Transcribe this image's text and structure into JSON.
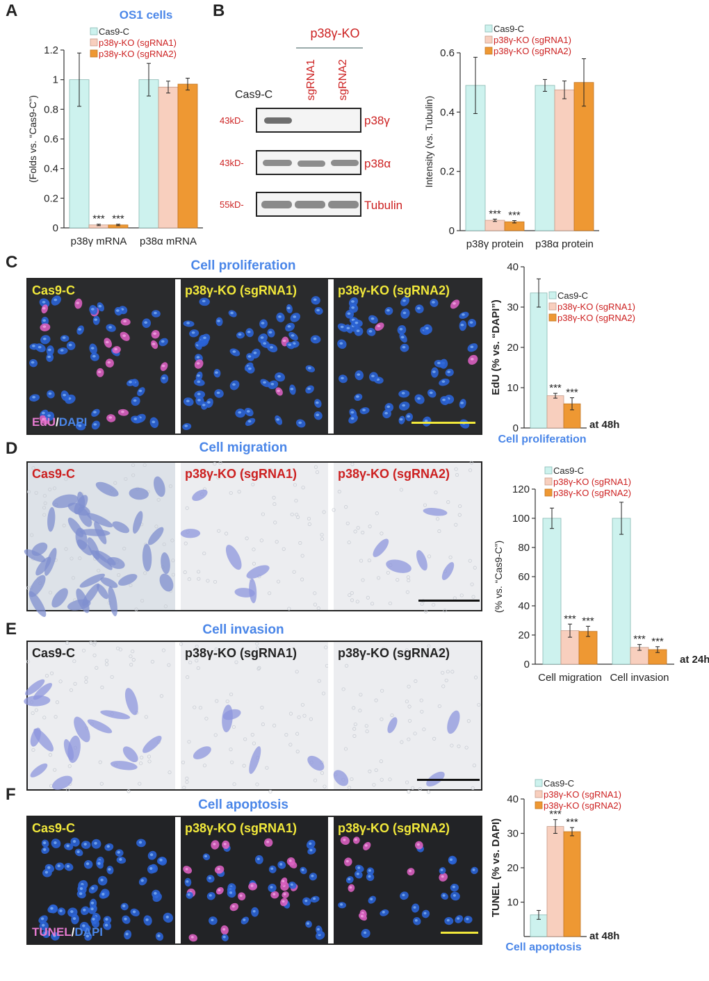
{
  "panels": {
    "A": "A",
    "B": "B",
    "C": "C",
    "D": "D",
    "E": "E",
    "F": "F"
  },
  "colors": {
    "cas9": "#cdf2ee",
    "sg1": "#f8cfbe",
    "sg2": "#ee9833",
    "title_blue": "#4a86e8",
    "label_red": "#cc1f1f",
    "label_yellow": "#f2e93b"
  },
  "legend": [
    "Cas9-C",
    "p38γ-KO (sgRNA1)",
    "p38γ-KO (sgRNA2)"
  ],
  "chart_data": [
    {
      "id": "A",
      "type": "bar",
      "title": "OS1 cells",
      "ylabel": "(Folds vs. “Cas9-C”)",
      "xlabel": "",
      "ylim": [
        0,
        1.2
      ],
      "yticks": [
        0,
        0.2,
        0.4,
        0.6,
        0.8,
        1,
        1.2
      ],
      "categories": [
        "p38γ mRNA",
        "p38α mRNA"
      ],
      "series": [
        {
          "name": "Cas9-C",
          "values": [
            1.0,
            1.0
          ],
          "errors": [
            0.18,
            0.11
          ]
        },
        {
          "name": "p38γ-KO (sgRNA1)",
          "values": [
            0.02,
            0.95
          ],
          "errors": [
            0.005,
            0.04
          ]
        },
        {
          "name": "p38γ-KO (sgRNA2)",
          "values": [
            0.02,
            0.97
          ],
          "errors": [
            0.005,
            0.04
          ]
        }
      ],
      "annotations": [
        [
          "",
          "***",
          "***"
        ],
        [
          "",
          "",
          ""
        ]
      ],
      "side_note": ""
    },
    {
      "id": "B",
      "type": "bar",
      "title": "",
      "ylabel": "Intensity (vs. Tubulin)",
      "xlabel": "",
      "ylim": [
        0,
        0.6
      ],
      "yticks": [
        0,
        0.2,
        0.4,
        0.6
      ],
      "categories": [
        "p38γ protein",
        "p38α protein"
      ],
      "series": [
        {
          "name": "Cas9-C",
          "values": [
            0.49,
            0.49
          ],
          "errors": [
            0.095,
            0.02
          ]
        },
        {
          "name": "p38γ-KO (sgRNA1)",
          "values": [
            0.035,
            0.475
          ],
          "errors": [
            0.004,
            0.03
          ]
        },
        {
          "name": "p38γ-KO (sgRNA2)",
          "values": [
            0.03,
            0.5
          ],
          "errors": [
            0.004,
            0.08
          ]
        }
      ],
      "annotations": [
        [
          "",
          "***",
          "***"
        ],
        [
          "",
          "",
          ""
        ]
      ],
      "side_note": ""
    },
    {
      "id": "C",
      "type": "bar",
      "title": "",
      "ylabel": "EdU (% vs. “DAPI”)",
      "xlabel": "Cell proliferation",
      "ylim": [
        0,
        40
      ],
      "yticks": [
        0,
        10,
        20,
        30,
        40
      ],
      "categories": [
        ""
      ],
      "series": [
        {
          "name": "Cas9-C",
          "values": [
            33.5
          ],
          "errors": [
            3.5
          ]
        },
        {
          "name": "p38γ-KO (sgRNA1)",
          "values": [
            8.0
          ],
          "errors": [
            0.6
          ]
        },
        {
          "name": "p38γ-KO (sgRNA2)",
          "values": [
            6.0
          ],
          "errors": [
            1.5
          ]
        }
      ],
      "annotations": [
        [
          "",
          "***",
          "***"
        ]
      ],
      "side_note": "at 48h"
    },
    {
      "id": "DE",
      "type": "bar",
      "title": "",
      "ylabel": "(% vs. “Cas9-C”)",
      "xlabel": "",
      "ylim": [
        0,
        120
      ],
      "yticks": [
        0,
        20,
        40,
        60,
        80,
        100,
        120
      ],
      "categories": [
        "Cell migration",
        "Cell invasion"
      ],
      "series": [
        {
          "name": "Cas9-C",
          "values": [
            100,
            100
          ],
          "errors": [
            7,
            11
          ]
        },
        {
          "name": "p38γ-KO (sgRNA1)",
          "values": [
            23,
            11.5
          ],
          "errors": [
            4.5,
            2
          ]
        },
        {
          "name": "p38γ-KO (sgRNA2)",
          "values": [
            22.5,
            10
          ],
          "errors": [
            3.5,
            2
          ]
        }
      ],
      "annotations": [
        [
          "",
          "***",
          "***"
        ],
        [
          "",
          "***",
          "***"
        ]
      ],
      "side_note": "at 24h"
    },
    {
      "id": "F",
      "type": "bar",
      "title": "",
      "ylabel": "TUNEL (% vs. DAPI)",
      "xlabel": "Cell apoptosis",
      "ylim": [
        0,
        40
      ],
      "yticks": [
        10,
        20,
        30,
        40
      ],
      "categories": [
        ""
      ],
      "series": [
        {
          "name": "Cas9-C",
          "values": [
            6.3
          ],
          "errors": [
            1.3
          ]
        },
        {
          "name": "p38γ-KO (sgRNA1)",
          "values": [
            32.0
          ],
          "errors": [
            2.0
          ]
        },
        {
          "name": "p38γ-KO (sgRNA2)",
          "values": [
            30.5
          ],
          "errors": [
            1.2
          ]
        }
      ],
      "annotations": [
        [
          "",
          "***",
          "***"
        ]
      ],
      "side_note": "at 48h"
    }
  ],
  "blot": {
    "group_label": "p38γ-KO",
    "lanes": [
      "Cas9-C",
      "sgRNA1",
      "sgRNA2"
    ],
    "rows": [
      {
        "marker": "43kD-",
        "protein": "p38γ"
      },
      {
        "marker": "43kD-",
        "protein": "p38α"
      },
      {
        "marker": "55kD-",
        "protein": "Tubulin"
      }
    ]
  },
  "microscopy": {
    "C": {
      "title": "Cell proliferation",
      "labels": [
        "Cas9-C",
        "p38γ-KO (sgRNA1)",
        "p38γ-KO (sgRNA2)"
      ],
      "corner_a": "EdU",
      "corner_sep": "/",
      "corner_b": "DAPI"
    },
    "D": {
      "title": "Cell migration",
      "labels": [
        "Cas9-C",
        "p38γ-KO (sgRNA1)",
        "p38γ-KO (sgRNA2)"
      ]
    },
    "E": {
      "title": "Cell invasion",
      "labels": [
        "Cas9-C",
        "p38γ-KO (sgRNA1)",
        "p38γ-KO (sgRNA2)"
      ]
    },
    "F": {
      "title": "Cell apoptosis",
      "labels": [
        "Cas9-C",
        "p38γ-KO (sgRNA1)",
        "p38γ-KO (sgRNA2)"
      ],
      "corner_a": "TUNEL",
      "corner_sep": "/",
      "corner_b": "DAPI"
    }
  }
}
